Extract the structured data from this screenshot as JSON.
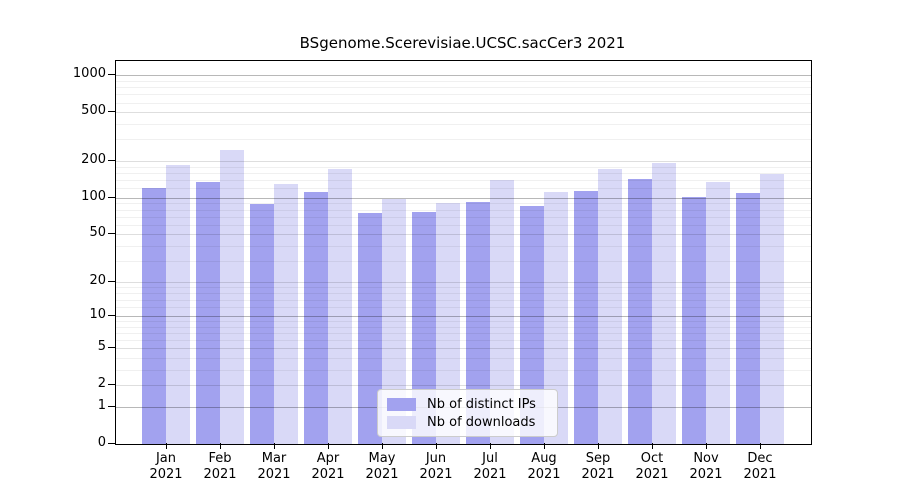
{
  "title": "BSgenome.Scerevisiae.UCSC.sacCer3 2021",
  "chart_data": {
    "type": "bar",
    "title": "BSgenome.Scerevisiae.UCSC.sacCer3 2021",
    "categories": [
      "Jan",
      "Feb",
      "Mar",
      "Apr",
      "May",
      "Jun",
      "Jul",
      "Aug",
      "Sep",
      "Oct",
      "Nov",
      "Dec"
    ],
    "year_label": "2021",
    "series": [
      {
        "name": "Nb of distinct IPs",
        "color": "#a2a2ef",
        "values": [
          120,
          135,
          88,
          112,
          75,
          76,
          93,
          85,
          114,
          143,
          101,
          110
        ]
      },
      {
        "name": "Nb of downloads",
        "color": "#d9d9f7",
        "values": [
          185,
          248,
          130,
          172,
          98,
          91,
          140,
          112,
          172,
          194,
          135,
          158
        ]
      }
    ],
    "y_axis": {
      "scale": "log1p",
      "ticks": [
        0,
        1,
        2,
        5,
        10,
        20,
        50,
        100,
        200,
        500,
        1000
      ],
      "top_value": 1300
    },
    "legend_position": "lower center",
    "grid": "horizontal major + minor, drawn over bars"
  }
}
